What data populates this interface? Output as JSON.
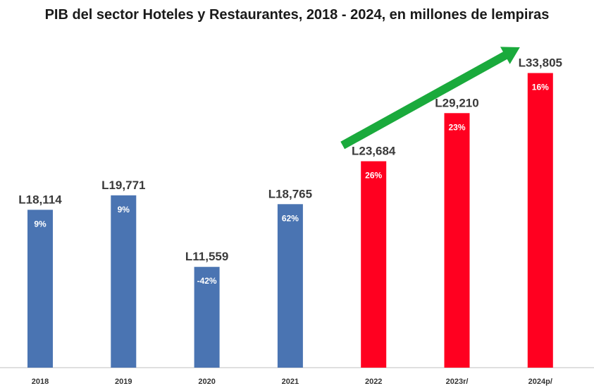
{
  "chart_data": {
    "type": "bar",
    "title": "PIB del sector Hoteles y Restaurantes, 2018 - 2024, en millones de lempiras",
    "categories": [
      "2018",
      "2019",
      "2020",
      "2021",
      "2022",
      "2023r/",
      "2024p/"
    ],
    "values": [
      18114,
      19771,
      11559,
      18765,
      23684,
      29210,
      33805
    ],
    "value_labels": [
      "L18,114",
      "L19,771",
      "L11,559",
      "L18,765",
      "L23,684",
      "L29,210",
      "L33,805"
    ],
    "growth_labels": [
      "9%",
      "9%",
      "-42%",
      "62%",
      "26%",
      "23%",
      "16%"
    ],
    "bar_colors": [
      "#4a74b2",
      "#4a74b2",
      "#4a74b2",
      "#4a74b2",
      "#ff0020",
      "#ff0020",
      "#ff0020"
    ],
    "xlabel": "",
    "ylabel": "",
    "ylim": [
      0,
      40000
    ],
    "grid": false,
    "annotation": {
      "type": "trend-arrow",
      "color": "#1aaa3c",
      "from_category": "2022",
      "to_category": "2024p/"
    }
  }
}
